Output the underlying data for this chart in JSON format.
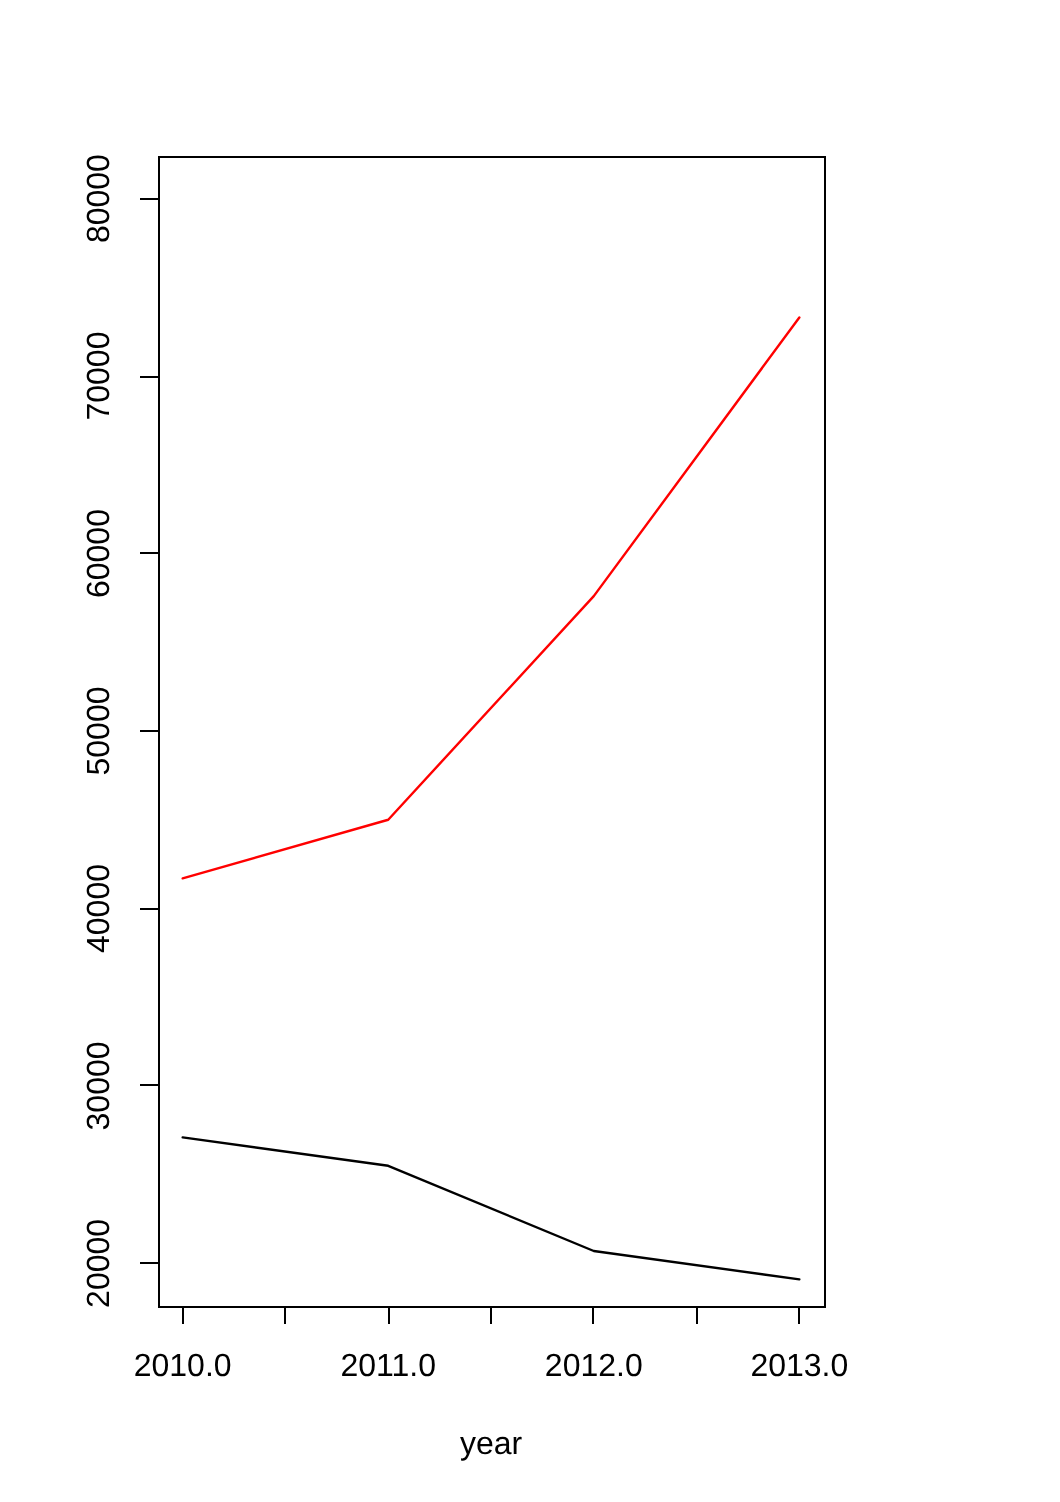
{
  "chart_data": {
    "type": "line",
    "xlabel": "year",
    "x": [
      2010,
      2011,
      2012,
      2013
    ],
    "series": [
      {
        "color": "#ff0000",
        "values": [
          41700,
          45000,
          57600,
          73300
        ]
      },
      {
        "color": "#000000",
        "values": [
          27100,
          25500,
          20700,
          19100
        ]
      }
    ],
    "xlim": [
      2009.88,
      2013.12
    ],
    "xticks": [
      {
        "value": 2010,
        "label": "2010.0"
      },
      {
        "value": 2010.5,
        "label": null
      },
      {
        "value": 2011,
        "label": "2011.0"
      },
      {
        "value": 2011.5,
        "label": null
      },
      {
        "value": 2012,
        "label": "2012.0"
      },
      {
        "value": 2012.5,
        "label": null
      },
      {
        "value": 2013,
        "label": "2013.0"
      }
    ],
    "ylim": [
      17600,
      82400
    ],
    "yticks": [
      20000,
      30000,
      40000,
      50000,
      60000,
      70000,
      80000
    ]
  }
}
